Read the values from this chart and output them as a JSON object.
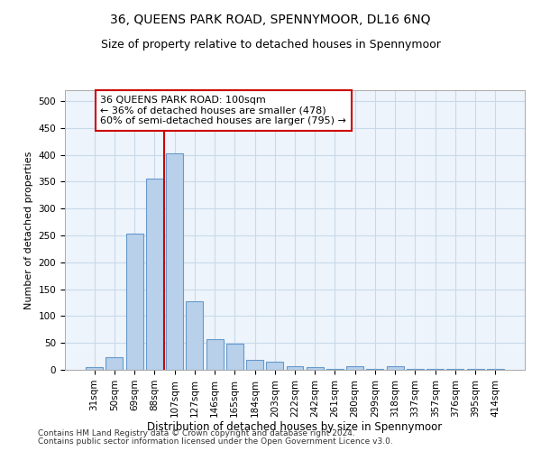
{
  "title": "36, QUEENS PARK ROAD, SPENNYMOOR, DL16 6NQ",
  "subtitle": "Size of property relative to detached houses in Spennymoor",
  "xlabel": "Distribution of detached houses by size in Spennymoor",
  "ylabel": "Number of detached properties",
  "categories": [
    "31sqm",
    "50sqm",
    "69sqm",
    "88sqm",
    "107sqm",
    "127sqm",
    "146sqm",
    "165sqm",
    "184sqm",
    "203sqm",
    "222sqm",
    "242sqm",
    "261sqm",
    "280sqm",
    "299sqm",
    "318sqm",
    "337sqm",
    "357sqm",
    "376sqm",
    "395sqm",
    "414sqm"
  ],
  "values": [
    5,
    23,
    253,
    355,
    403,
    128,
    57,
    48,
    18,
    15,
    7,
    5,
    2,
    6,
    2,
    6,
    2,
    2,
    1,
    2,
    2
  ],
  "bar_color": "#b8d0ea",
  "bar_edge_color": "#6699cc",
  "redline_x": 3.5,
  "annotation_text": "36 QUEENS PARK ROAD: 100sqm\n← 36% of detached houses are smaller (478)\n60% of semi-detached houses are larger (795) →",
  "annotation_box_color": "#ffffff",
  "annotation_box_edge_color": "#cc0000",
  "redline_color": "#cc0000",
  "ylim": [
    0,
    520
  ],
  "yticks": [
    0,
    50,
    100,
    150,
    200,
    250,
    300,
    350,
    400,
    450,
    500
  ],
  "grid_color": "#c8daea",
  "footer_line1": "Contains HM Land Registry data © Crown copyright and database right 2024.",
  "footer_line2": "Contains public sector information licensed under the Open Government Licence v3.0.",
  "title_fontsize": 10,
  "subtitle_fontsize": 9,
  "xlabel_fontsize": 8.5,
  "ylabel_fontsize": 8,
  "tick_fontsize": 7.5,
  "footer_fontsize": 6.5,
  "annotation_fontsize": 8,
  "bg_color": "#eef4fb"
}
